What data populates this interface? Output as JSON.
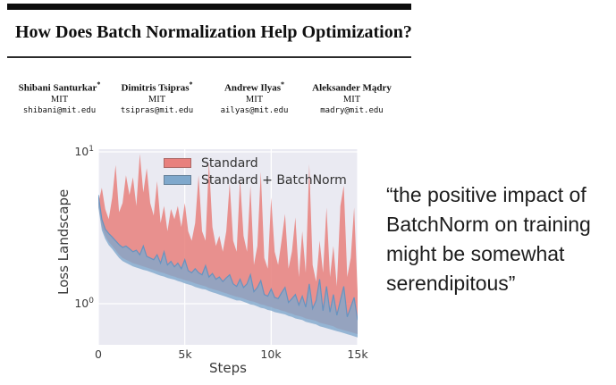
{
  "header": {
    "title": "How Does Batch Normalization Help Optimization?"
  },
  "authors": [
    {
      "name": "Shibani Santurkar",
      "marker": "*",
      "affiliation": "MIT",
      "email": "shibani@mit.edu"
    },
    {
      "name": "Dimitris Tsipras",
      "marker": "*",
      "affiliation": "MIT",
      "email": "tsipras@mit.edu"
    },
    {
      "name": "Andrew Ilyas",
      "marker": "*",
      "affiliation": "MIT",
      "email": "ailyas@mit.edu"
    },
    {
      "name": "Aleksander Mądry",
      "marker": "",
      "affiliation": "MIT",
      "email": "madry@mit.edu"
    }
  ],
  "quote": {
    "text": "“the positive impact of BatchNorm on training might be somewhat serendipitous”",
    "lines": [
      "“the positive impact of",
      "BatchNorm on training",
      "might be somewhat",
      "serendipitous”"
    ]
  },
  "chart_data": {
    "type": "area",
    "title": "",
    "xlabel": "Steps",
    "ylabel": "Loss Landscape",
    "yscale": "log",
    "grid": true,
    "legend_position": "upper center",
    "plot_bg": "#eaeaf2",
    "grid_color": "#ffffff",
    "xlim": [
      0,
      15000
    ],
    "ylim": [
      0.54,
      10.4
    ],
    "x_ticks": [
      {
        "value": 0,
        "label": "0"
      },
      {
        "value": 5000,
        "label": "5k"
      },
      {
        "value": 10000,
        "label": "10k"
      },
      {
        "value": 15000,
        "label": "15k"
      }
    ],
    "y_ticks": [
      {
        "value": 10,
        "base": "10",
        "exp": "1"
      },
      {
        "value": 1,
        "base": "10",
        "exp": "0"
      }
    ],
    "x": [
      0,
      200,
      400,
      600,
      800,
      1000,
      1200,
      1400,
      1600,
      1800,
      2000,
      2200,
      2400,
      2600,
      2800,
      3000,
      3200,
      3400,
      3600,
      3800,
      4000,
      4200,
      4400,
      4600,
      4800,
      5000,
      5200,
      5400,
      5600,
      5800,
      6000,
      6200,
      6400,
      6600,
      6800,
      7000,
      7200,
      7400,
      7600,
      7800,
      8000,
      8200,
      8400,
      8600,
      8800,
      9000,
      9200,
      9400,
      9600,
      9800,
      10000,
      10200,
      10400,
      10600,
      10800,
      11000,
      11200,
      11400,
      11600,
      11800,
      12000,
      12200,
      12400,
      12600,
      12800,
      13000,
      13200,
      13400,
      13600,
      13800,
      14000,
      14200,
      14400,
      14600,
      14800,
      15000
    ],
    "series": [
      {
        "name": "Standard",
        "color": "#e8807d",
        "fill_opacity": 0.85,
        "upper": [
          4.6,
          5.8,
          4.2,
          3.6,
          5.0,
          8.2,
          4.0,
          4.6,
          7.0,
          5.2,
          6.8,
          4.4,
          9.7,
          5.4,
          7.8,
          4.6,
          3.8,
          6.4,
          3.4,
          4.4,
          3.0,
          4.2,
          3.6,
          4.4,
          3.2,
          4.6,
          3.0,
          2.6,
          3.4,
          7.0,
          3.0,
          2.6,
          8.6,
          3.2,
          2.4,
          2.8,
          2.2,
          3.0,
          6.2,
          2.6,
          2.2,
          6.6,
          2.8,
          2.2,
          6.0,
          1.8,
          2.4,
          7.4,
          2.0,
          1.7,
          5.0,
          2.2,
          1.8,
          2.6,
          3.9,
          1.7,
          2.2,
          3.7,
          1.5,
          3.0,
          1.6,
          8.3,
          1.8,
          1.4,
          2.6,
          1.6,
          4.3,
          1.5,
          2.4,
          1.3,
          4.4,
          6.0,
          1.5,
          2.0,
          4.3,
          1.2
        ],
        "lower": [
          4.5,
          3.2,
          2.8,
          2.55,
          2.4,
          2.25,
          2.1,
          2.0,
          1.95,
          1.9,
          1.85,
          1.82,
          1.79,
          1.76,
          1.73,
          1.7,
          1.67,
          1.64,
          1.61,
          1.59,
          1.56,
          1.53,
          1.51,
          1.48,
          1.46,
          1.43,
          1.41,
          1.39,
          1.36,
          1.34,
          1.32,
          1.3,
          1.27,
          1.25,
          1.23,
          1.21,
          1.19,
          1.17,
          1.15,
          1.13,
          1.11,
          1.1,
          1.08,
          1.06,
          1.04,
          1.03,
          1.01,
          0.99,
          0.98,
          0.96,
          0.95,
          0.93,
          0.92,
          0.9,
          0.89,
          0.87,
          0.86,
          0.84,
          0.83,
          0.82,
          0.8,
          0.79,
          0.78,
          0.77,
          0.75,
          0.74,
          0.73,
          0.72,
          0.71,
          0.69,
          0.68,
          0.67,
          0.66,
          0.65,
          0.64,
          0.63
        ]
      },
      {
        "name": "Standard + BatchNorm",
        "color": "#7fa8cc",
        "fill_opacity": 0.8,
        "upper": [
          5.2,
          3.6,
          3.1,
          2.9,
          2.75,
          2.6,
          2.45,
          2.35,
          2.4,
          2.3,
          2.2,
          2.25,
          2.1,
          2.4,
          2.05,
          2.0,
          1.95,
          2.1,
          1.85,
          2.2,
          1.8,
          1.9,
          1.75,
          1.85,
          1.7,
          1.95,
          1.65,
          1.6,
          1.7,
          1.6,
          1.55,
          1.78,
          1.5,
          1.58,
          1.45,
          1.5,
          1.4,
          1.48,
          1.55,
          1.35,
          1.3,
          1.45,
          1.28,
          1.35,
          1.55,
          1.2,
          1.28,
          1.42,
          1.15,
          1.12,
          1.25,
          1.1,
          1.08,
          1.18,
          1.28,
          1.02,
          1.08,
          1.15,
          0.98,
          1.12,
          0.95,
          1.35,
          0.93,
          1.05,
          1.45,
          0.9,
          1.3,
          0.88,
          1.15,
          0.84,
          1.05,
          1.3,
          0.82,
          0.95,
          1.1,
          0.78
        ],
        "lower": [
          4.3,
          3.05,
          2.67,
          2.43,
          2.29,
          2.14,
          2.0,
          1.91,
          1.86,
          1.81,
          1.76,
          1.73,
          1.7,
          1.67,
          1.65,
          1.62,
          1.59,
          1.56,
          1.53,
          1.51,
          1.48,
          1.46,
          1.44,
          1.41,
          1.39,
          1.36,
          1.34,
          1.32,
          1.29,
          1.27,
          1.25,
          1.24,
          1.21,
          1.19,
          1.17,
          1.15,
          1.13,
          1.11,
          1.09,
          1.07,
          1.05,
          1.05,
          1.03,
          1.01,
          0.99,
          0.98,
          0.96,
          0.94,
          0.93,
          0.91,
          0.9,
          0.88,
          0.87,
          0.86,
          0.85,
          0.83,
          0.82,
          0.8,
          0.79,
          0.78,
          0.76,
          0.75,
          0.74,
          0.73,
          0.71,
          0.7,
          0.69,
          0.68,
          0.67,
          0.66,
          0.65,
          0.64,
          0.63,
          0.62,
          0.61,
          0.6
        ]
      }
    ]
  }
}
